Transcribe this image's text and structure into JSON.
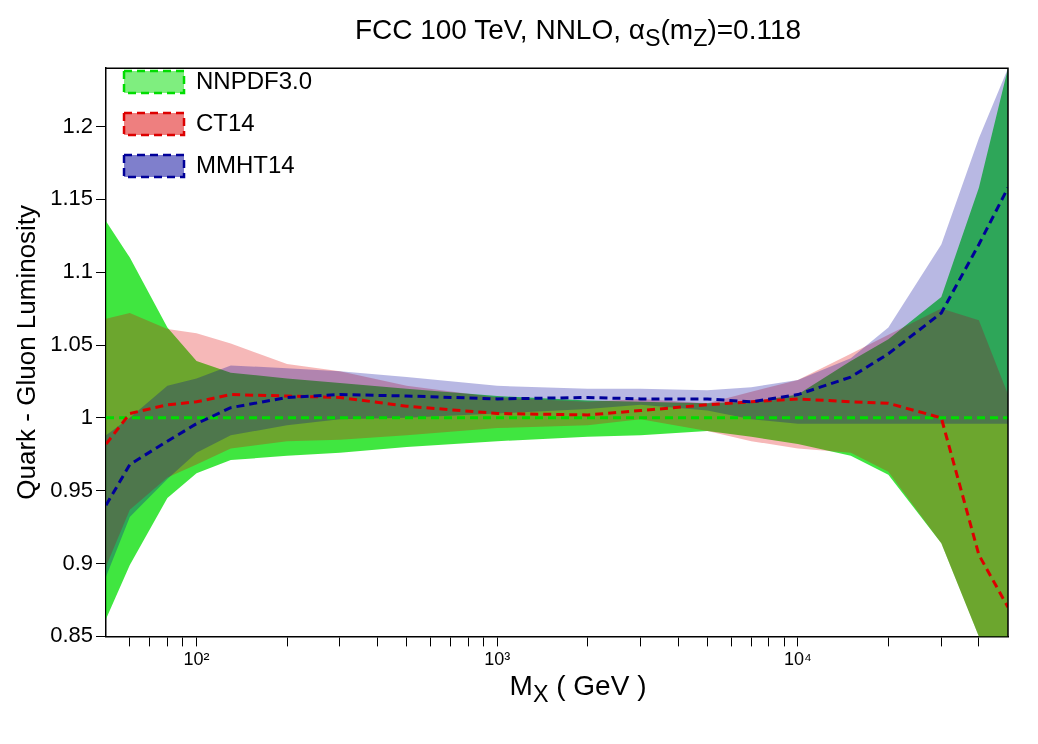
{
  "chart_data": {
    "type": "line",
    "title": "FCC 100 TeV, NNLO, α$_{S}$(m$_{Z}$)=0.118",
    "xlabel": "M$_{X}$ ( GeV )",
    "ylabel": "Quark - Gluon Luminosity",
    "log": "x",
    "grid": false,
    "legend": "top left",
    "line_style": "dashed",
    "marker": "none",
    "x": [
      50,
      60,
      80,
      100,
      130,
      200,
      300,
      500,
      1000,
      2000,
      3000,
      5000,
      7000,
      10000,
      15000,
      20000,
      30000,
      40000,
      50000
    ],
    "xlim": [
      50,
      50000
    ],
    "xticks": [
      {
        "value": 60,
        "label": null
      },
      {
        "value": 70,
        "label": null
      },
      {
        "value": 80,
        "label": null
      },
      {
        "value": 90,
        "label": null
      },
      {
        "value": 100,
        "label": "10²"
      },
      {
        "value": 200,
        "label": null
      },
      {
        "value": 300,
        "label": null
      },
      {
        "value": 400,
        "label": null
      },
      {
        "value": 500,
        "label": null
      },
      {
        "value": 600,
        "label": null
      },
      {
        "value": 700,
        "label": null
      },
      {
        "value": 800,
        "label": null
      },
      {
        "value": 900,
        "label": null
      },
      {
        "value": 1000,
        "label": "10³"
      },
      {
        "value": 2000,
        "label": null
      },
      {
        "value": 3000,
        "label": null
      },
      {
        "value": 4000,
        "label": null
      },
      {
        "value": 5000,
        "label": null
      },
      {
        "value": 6000,
        "label": null
      },
      {
        "value": 7000,
        "label": null
      },
      {
        "value": 8000,
        "label": null
      },
      {
        "value": 9000,
        "label": null
      },
      {
        "value": 10000,
        "label": "10⁴"
      },
      {
        "value": 20000,
        "label": null
      },
      {
        "value": 30000,
        "label": null
      },
      {
        "value": 40000,
        "label": null
      }
    ],
    "ylim": [
      0.85,
      1.24
    ],
    "yticks": [
      0.85,
      0.9,
      0.95,
      1,
      1.05,
      1.1,
      1.15,
      1.2
    ],
    "series": [
      {
        "name": "NNPDF3.0",
        "color": "#00dd00",
        "values": [
          1,
          1,
          1,
          1,
          1,
          1,
          1,
          1,
          1,
          1,
          1,
          1,
          1,
          1,
          1,
          1,
          1,
          1,
          1
        ],
        "lower": [
          0.862,
          0.899,
          0.945,
          0.962,
          0.971,
          0.974,
          0.976,
          0.98,
          0.984,
          0.987,
          0.988,
          0.991,
          0.987,
          0.982,
          0.974,
          0.961,
          0.914,
          0.85,
          0.85
        ],
        "upper": [
          1.135,
          1.11,
          1.062,
          1.039,
          1.031,
          1.027,
          1.024,
          1.02,
          1.015,
          1.012,
          1.011,
          1.01,
          1.011,
          1.016,
          1.039,
          1.054,
          1.083,
          1.158,
          1.24
        ]
      },
      {
        "name": "CT14",
        "color": "#dd0000",
        "values": [
          0.982,
          1.003,
          1.009,
          1.011,
          1.016,
          1.015,
          1.014,
          1.008,
          1.003,
          1.002,
          1.005,
          1.009,
          1.011,
          1.013,
          1.011,
          1.01,
          1,
          0.906,
          0.87
        ],
        "lower": [
          0.898,
          0.937,
          0.959,
          0.968,
          0.979,
          0.984,
          0.985,
          0.988,
          0.993,
          0.995,
          0.999,
          0.991,
          0.984,
          0.979,
          0.976,
          0.963,
          0.914,
          0.85,
          0.85
        ],
        "upper": [
          1.068,
          1.072,
          1.061,
          1.058,
          1.051,
          1.037,
          1.032,
          1.022,
          1.014,
          1.011,
          1.013,
          1.01,
          1.018,
          1.026,
          1.044,
          1.057,
          1.075,
          1.067,
          1.016
        ]
      },
      {
        "name": "MMHT14",
        "color": "#000099",
        "values": [
          0.94,
          0.968,
          0.984,
          0.996,
          1.007,
          1.014,
          1.016,
          1.015,
          1.013,
          1.014,
          1.013,
          1.013,
          1.011,
          1.016,
          1.028,
          1.044,
          1.072,
          1.119,
          1.158
        ],
        "lower": [
          0.891,
          0.932,
          0.958,
          0.976,
          0.988,
          0.995,
          0.999,
          1,
          1.003,
          1.006,
          1.009,
          1.005,
          0.999,
          0.996,
          0.996,
          0.996,
          0.996,
          0.996,
          0.996
        ],
        "upper": [
          0.988,
          1,
          1.022,
          1.027,
          1.036,
          1.034,
          1.032,
          1.028,
          1.022,
          1.02,
          1.02,
          1.019,
          1.021,
          1.026,
          1.041,
          1.062,
          1.119,
          1.192,
          1.24
        ]
      }
    ]
  }
}
